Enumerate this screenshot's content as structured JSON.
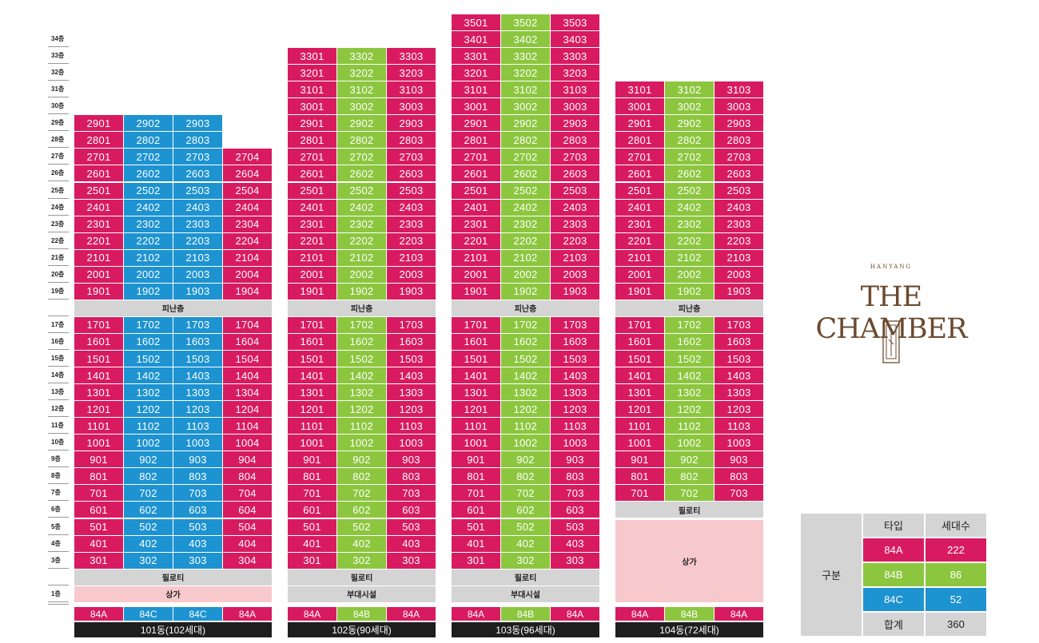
{
  "colors": {
    "A": "#d81b60",
    "B": "#8cc63f",
    "C": "#1e93d1",
    "gray": "#d4d4d4",
    "pink": "#f7c9cd",
    "dark": "#1e1e1e",
    "logo": "#6b4a2e"
  },
  "logo": {
    "small": "HANYANG",
    "main": "THE CHAMBER"
  },
  "floors": {
    "labels": [
      "34층",
      "33층",
      "32층",
      "31층",
      "30층",
      "29층",
      "28층",
      "27층",
      "26층",
      "25층",
      "24층",
      "23층",
      "22층",
      "21층",
      "20층",
      "19층",
      "",
      "17층",
      "16층",
      "15층",
      "14층",
      "13층",
      "12층",
      "11층",
      "10층",
      "9층",
      "8층",
      "7층",
      "6층",
      "5층",
      "4층",
      "3층",
      "",
      "1층"
    ]
  },
  "buildings": [
    {
      "name": "101동(102세대)",
      "types": [
        {
          "label": "84A",
          "t": "A"
        },
        {
          "label": "84C",
          "t": "C"
        },
        {
          "label": "84C",
          "t": "C"
        },
        {
          "label": "84A",
          "t": "A"
        }
      ],
      "lines": [
        {
          "t": "A",
          "top": 29,
          "skip18": true,
          "lines_suffix": "01"
        },
        {
          "t": "C",
          "top": 29,
          "lines_suffix": "02"
        },
        {
          "t": "C",
          "top": 29,
          "lines_suffix": "03"
        },
        {
          "t": "A",
          "top": 27,
          "lines_suffix": "04"
        }
      ],
      "shelter": "피난층",
      "piloti": "필로티",
      "ground": "상가",
      "ground_type": "pink",
      "low_floor": 3
    },
    {
      "name": "102동(90세대)",
      "types": [
        {
          "label": "84A",
          "t": "A"
        },
        {
          "label": "84B",
          "t": "B"
        },
        {
          "label": "84A",
          "t": "A"
        }
      ],
      "lines": [
        {
          "t": "A",
          "top": 33,
          "lines_suffix": "01"
        },
        {
          "t": "B",
          "top": 33,
          "lines_suffix": "02"
        },
        {
          "t": "A",
          "top": 33,
          "lines_suffix": "03"
        }
      ],
      "shelter": "피난층",
      "piloti": "필로티",
      "ground": "부대시설",
      "ground_type": "gray",
      "low_floor": 3
    },
    {
      "name": "103동(96세대)",
      "types": [
        {
          "label": "84A",
          "t": "A"
        },
        {
          "label": "84B",
          "t": "B"
        },
        {
          "label": "84A",
          "t": "A"
        }
      ],
      "lines": [
        {
          "t": "A",
          "top": 35,
          "lines_suffix": "01"
        },
        {
          "t": "B",
          "top": 35,
          "lines_suffix": "02"
        },
        {
          "t": "A",
          "top": 35,
          "lines_suffix": "03"
        }
      ],
      "shelter": "피난층",
      "piloti": "필로티",
      "ground": "부대시설",
      "ground_type": "gray",
      "low_floor": 3
    },
    {
      "name": "104동(72세대)",
      "types": [
        {
          "label": "84A",
          "t": "A"
        },
        {
          "label": "84B",
          "t": "B"
        },
        {
          "label": "84A",
          "t": "A"
        }
      ],
      "lines": [
        {
          "t": "A",
          "top": 31,
          "lines_suffix": "01"
        },
        {
          "t": "B",
          "top": 31,
          "lines_suffix": "02"
        },
        {
          "t": "A",
          "top": 31,
          "lines_suffix": "03"
        }
      ],
      "shelter": "피난층",
      "piloti": "필로티",
      "ground": "상가",
      "ground_type": "pink",
      "low_floor": 7
    }
  ],
  "legend": {
    "category": "구분",
    "header_type": "타입",
    "header_count": "세대수",
    "rows": [
      {
        "type": "84A",
        "count": "222",
        "t": "A"
      },
      {
        "type": "84B",
        "count": "86",
        "t": "B"
      },
      {
        "type": "84C",
        "count": "52",
        "t": "C"
      },
      {
        "type": "합계",
        "count": "360",
        "t": "gray"
      }
    ]
  }
}
